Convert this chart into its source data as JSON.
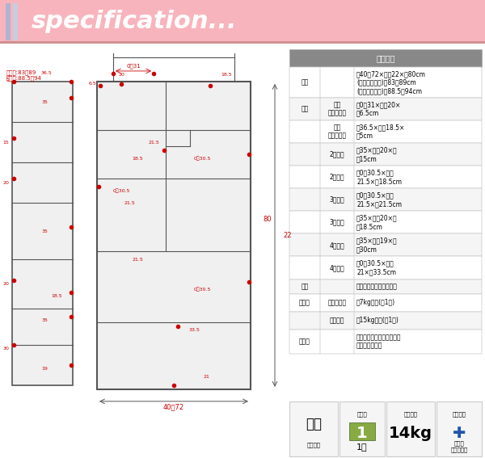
{
  "title": "specification...",
  "header_bg": "#f8b4bc",
  "header_text_color": "#ffffff",
  "page_bg": "#ffffff",
  "bar_colors": [
    "#b0b4d0",
    "#c8cce0"
  ],
  "table_header_bg": "#888888",
  "table_header_text": "#ffffff",
  "table_border": "#cccccc",
  "table_bg": "#ffffff",
  "table_alt_bg": "#f5f5f5",
  "spec_table": {
    "header": "商品詳細",
    "rows": [
      [
        "外寸",
        "",
        "幀40～72×奩行22×高80cm\n(金具小使用時)高83～89cm\n(金具大使用時)高88.5～94cm"
      ],
      [
        "内寸",
        "左上\nオープン部",
        "幀0～31×奩行20×\n高6.5cm"
      ],
      [
        "",
        "右上\nオープン部",
        "幀36.5×奩行18.5×\n高5cm"
      ],
      [
        "",
        "2段目左",
        "幀35×奩行20×高\nさ15cm"
      ],
      [
        "",
        "2段目右",
        "幀0～30.5×奩行\n21.5×高18.5cm"
      ],
      [
        "",
        "3段目左",
        "幀0～30.5×奩行\n21.5×高21.5cm"
      ],
      [
        "",
        "3段目右",
        "幀35×奩行20×高\nさ18.5cm"
      ],
      [
        "",
        "4段目左",
        "幀35×奩行19×高\nさ30cm"
      ],
      [
        "",
        "4段目右",
        "幀0～30.5×奩行\n21×高33.5cm"
      ],
      [
        "材質",
        "",
        "低圧メラミン化粿繊維板"
      ],
      [
        "耗荷重",
        "最大伸長時",
        "約7kg以下(棚1枚)"
      ],
      [
        "",
        "無伸長時",
        "約15kg以下(棚1枚)"
      ],
      [
        "その他",
        "",
        "・突っ張り金具２種類付属\n・幅木避け付き"
      ]
    ]
  },
  "diagram_color": "#555555",
  "dim_color": "#cc0000",
  "label_left": "金具小:83～89\n金具大:88.5～94",
  "bottom_icons": {
    "assemble": "組立て品",
    "box_count_label": "棚包数",
    "box_count": "1個",
    "weight_label": "棚包重量",
    "weight": "14kg",
    "tool_label": "必要工具",
    "tool": "プラス\nドライバー"
  }
}
